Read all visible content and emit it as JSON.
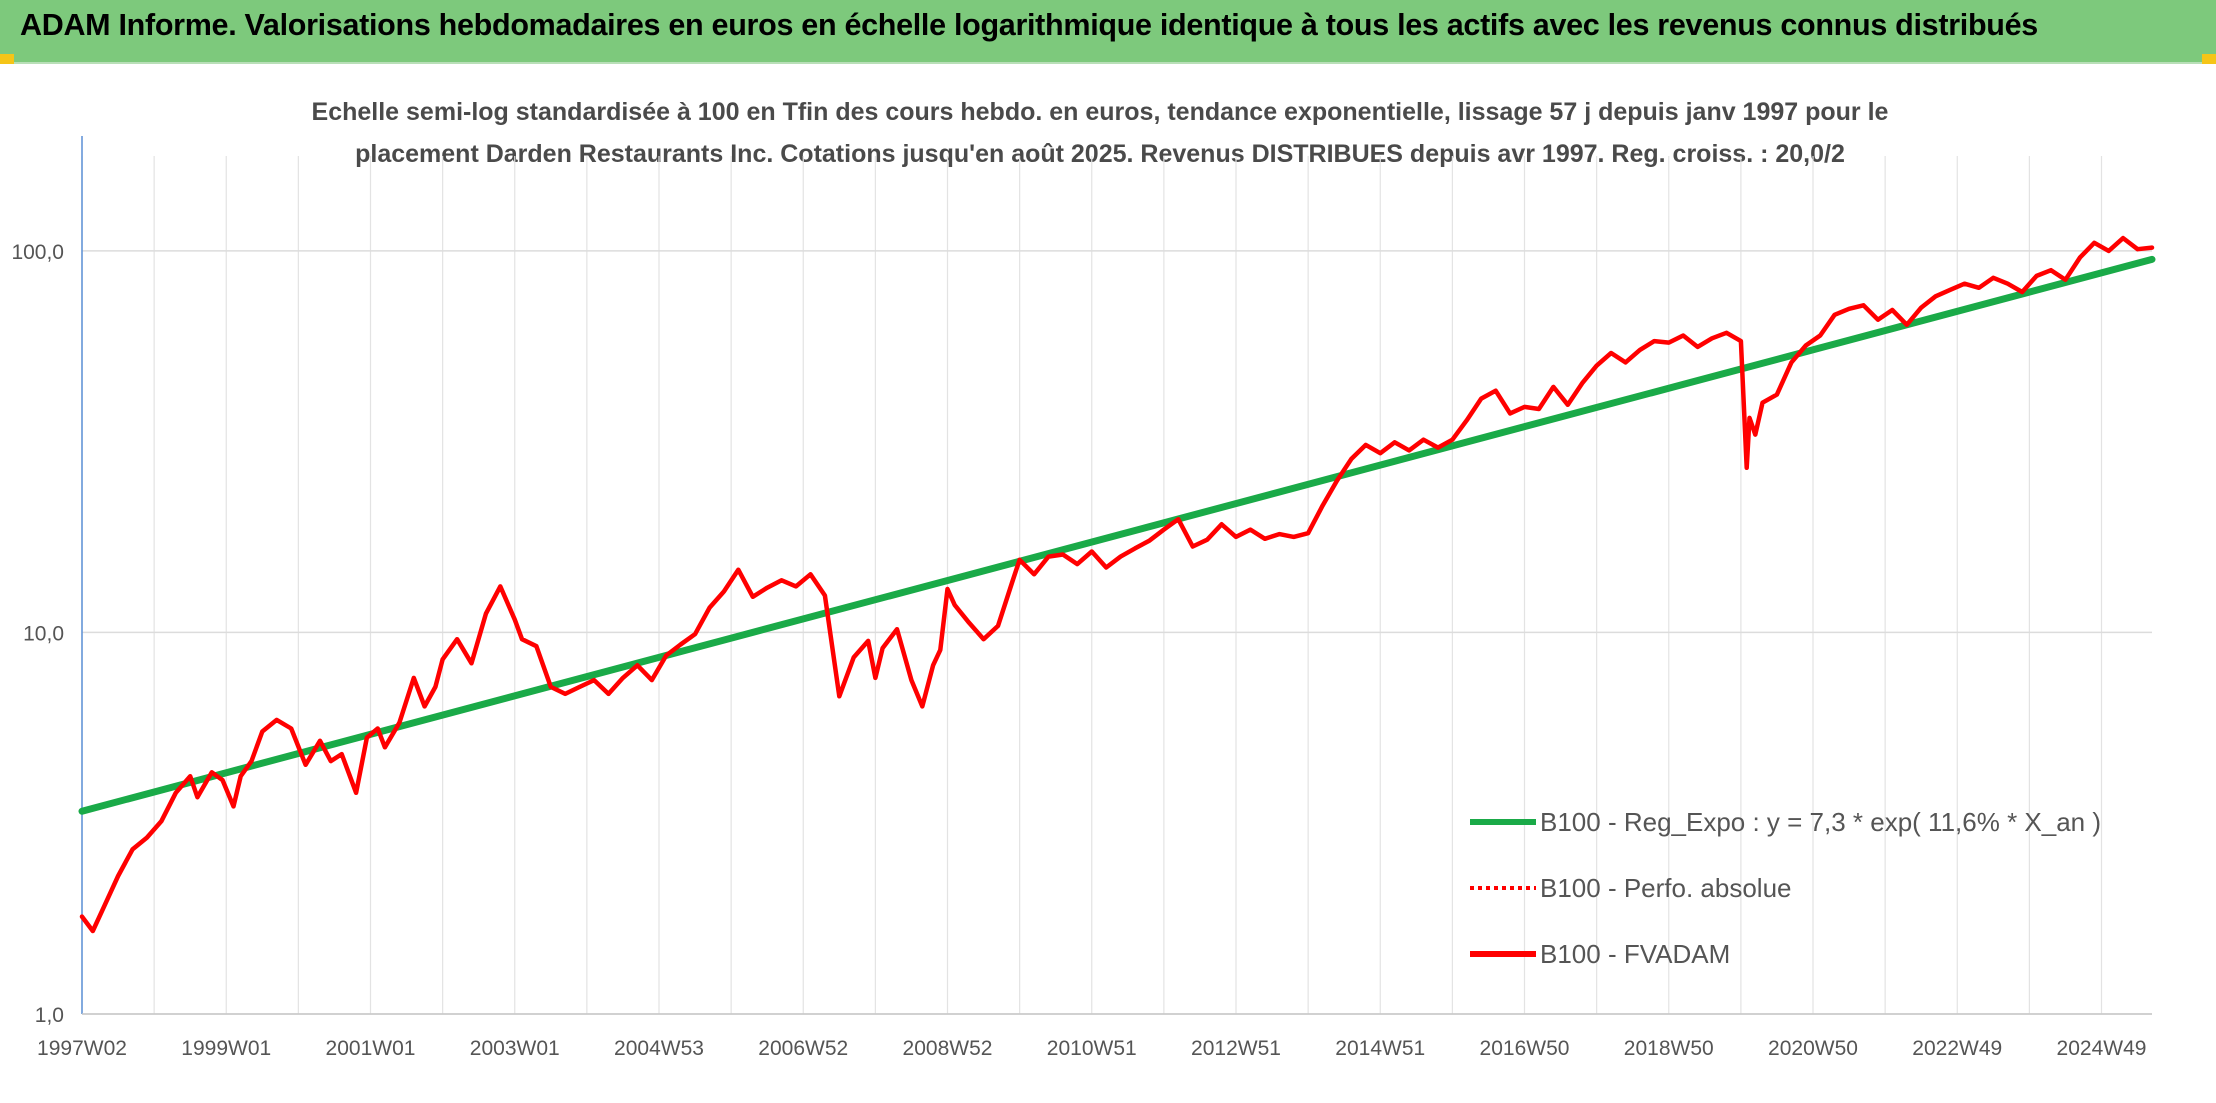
{
  "header": {
    "title": "ADAM Informe. Valorisations hebdomadaires en euros en échelle logarithmique identique à tous les actifs avec les revenus connus distribués"
  },
  "colors": {
    "header_bg": "#7dc97c",
    "accent_corner": "#f5c518",
    "regression": "#1aaa48",
    "fvadam": "#ff0000",
    "grid": "#d9d9d9"
  },
  "chart_data": {
    "type": "line",
    "title_lines": [
      "Echelle semi-log standardisée à 100 en Tfin des cours hebdo. en euros, tendance exponentielle, lissage 57 j depuis janv 1997 pour le",
      "placement Darden Restaurants Inc. Cotations jusqu'en août 2025. Revenus DISTRIBUES depuis avr 1997. Reg. croiss. : 20,0/2"
    ],
    "y_scale": "log",
    "ylim": [
      1,
      200
    ],
    "y_ticks": [
      1,
      10,
      100
    ],
    "y_tick_labels": [
      "1,0",
      "10,0",
      "100,0"
    ],
    "x_range": [
      1997.0,
      2025.7
    ],
    "x_ticks": [
      1997.0,
      1999.0,
      2001.0,
      2003.0,
      2005.0,
      2007.0,
      2009.0,
      2011.0,
      2013.0,
      2015.0,
      2017.0,
      2019.0,
      2021.0,
      2023.0,
      2025.0
    ],
    "x_tick_labels": [
      "1997W02",
      "1999W01",
      "2001W01",
      "2003W01",
      "2004W53",
      "2006W52",
      "2008W52",
      "2010W51",
      "2012W51",
      "2014W51",
      "2016W50",
      "2018W50",
      "2020W50",
      "2022W49",
      "2024W49"
    ],
    "grid": true,
    "legend_position": "lower-right",
    "legend": [
      {
        "label": "B100 - Reg_Expo : y = 7,3 * exp( 11,6% *  X_an )",
        "color": "#1aaa48",
        "style": "solid"
      },
      {
        "label": "B100 - Perfo. absolue",
        "color": "#ff0000",
        "style": "dotted"
      },
      {
        "label": "B100 - FVADAM",
        "color": "#ff0000",
        "style": "solid"
      }
    ],
    "series": [
      {
        "name": "B100 - Reg_Expo : y = 7,3 * exp( 11,6% *  X_an )",
        "x": [
          1997.0,
          2025.7
        ],
        "y": [
          3.4,
          95
        ]
      },
      {
        "name": "B100 - FVADAM",
        "x": [
          1997.0,
          1997.15,
          1997.3,
          1997.5,
          1997.7,
          1997.9,
          1998.1,
          1998.3,
          1998.5,
          1998.6,
          1998.8,
          1998.95,
          1999.1,
          1999.2,
          1999.35,
          1999.5,
          1999.7,
          1999.9,
          2000.1,
          2000.3,
          2000.45,
          2000.6,
          2000.8,
          2000.95,
          2001.1,
          2001.2,
          2001.4,
          2001.6,
          2001.75,
          2001.9,
          2002.0,
          2002.2,
          2002.4,
          2002.6,
          2002.8,
          2003.0,
          2003.1,
          2003.3,
          2003.5,
          2003.7,
          2003.9,
          2004.1,
          2004.3,
          2004.5,
          2004.7,
          2004.9,
          2005.1,
          2005.3,
          2005.5,
          2005.7,
          2005.9,
          2006.1,
          2006.3,
          2006.5,
          2006.7,
          2006.9,
          2007.1,
          2007.3,
          2007.5,
          2007.7,
          2007.9,
          2008.0,
          2008.1,
          2008.3,
          2008.5,
          2008.65,
          2008.8,
          2008.9,
          2009.0,
          2009.1,
          2009.3,
          2009.5,
          2009.7,
          2009.9,
          2010.0,
          2010.2,
          2010.4,
          2010.6,
          2010.8,
          2011.0,
          2011.2,
          2011.4,
          2011.6,
          2011.8,
          2012.0,
          2012.2,
          2012.4,
          2012.6,
          2012.8,
          2013.0,
          2013.2,
          2013.4,
          2013.6,
          2013.8,
          2014.0,
          2014.2,
          2014.4,
          2014.6,
          2014.8,
          2015.0,
          2015.2,
          2015.4,
          2015.6,
          2015.8,
          2016.0,
          2016.2,
          2016.4,
          2016.6,
          2016.8,
          2017.0,
          2017.2,
          2017.4,
          2017.6,
          2017.8,
          2018.0,
          2018.2,
          2018.4,
          2018.6,
          2018.8,
          2019.0,
          2019.2,
          2019.4,
          2019.6,
          2019.8,
          2020.0,
          2020.08,
          2020.12,
          2020.2,
          2020.3,
          2020.5,
          2020.7,
          2020.9,
          2021.1,
          2021.3,
          2021.5,
          2021.7,
          2021.9,
          2022.1,
          2022.3,
          2022.5,
          2022.7,
          2022.9,
          2023.1,
          2023.3,
          2023.5,
          2023.7,
          2023.9,
          2024.1,
          2024.3,
          2024.5,
          2024.7,
          2024.9,
          2025.1,
          2025.3,
          2025.5,
          2025.7
        ],
        "y": [
          1.8,
          1.65,
          1.9,
          2.3,
          2.7,
          2.9,
          3.2,
          3.8,
          4.2,
          3.7,
          4.3,
          4.1,
          3.5,
          4.2,
          4.6,
          5.5,
          5.9,
          5.6,
          4.5,
          5.2,
          4.6,
          4.8,
          3.8,
          5.3,
          5.6,
          5.0,
          5.8,
          7.6,
          6.4,
          7.2,
          8.5,
          9.6,
          8.3,
          11.2,
          13.2,
          10.8,
          9.6,
          9.2,
          7.2,
          6.9,
          7.2,
          7.5,
          6.9,
          7.6,
          8.2,
          7.5,
          8.7,
          9.3,
          9.9,
          11.6,
          12.8,
          14.6,
          12.4,
          13.1,
          13.7,
          13.2,
          14.2,
          12.5,
          6.8,
          8.6,
          9.5,
          7.6,
          9.1,
          10.2,
          7.5,
          6.4,
          8.2,
          9.0,
          13.0,
          11.8,
          10.6,
          9.6,
          10.4,
          13.6,
          15.5,
          14.2,
          15.8,
          16.0,
          15.1,
          16.3,
          14.8,
          15.8,
          16.6,
          17.4,
          18.6,
          19.8,
          16.8,
          17.5,
          19.2,
          17.8,
          18.6,
          17.6,
          18.1,
          17.8,
          18.2,
          21.5,
          25.0,
          28.5,
          31.0,
          29.5,
          31.5,
          30.0,
          32.0,
          30.5,
          32.0,
          36.0,
          41.0,
          43.0,
          37.5,
          39.0,
          38.5,
          44.0,
          39.5,
          45.0,
          50.0,
          54.0,
          51.0,
          55.0,
          58.0,
          57.5,
          60.0,
          56.0,
          59.0,
          61.0,
          58.0,
          27.0,
          36.5,
          33.0,
          40.0,
          42.0,
          51.0,
          56.5,
          60.0,
          68.0,
          70.5,
          72.0,
          66.0,
          70.0,
          64.0,
          71.0,
          76.0,
          79.0,
          82.0,
          80.0,
          85.0,
          82.0,
          78.0,
          86.0,
          89.0,
          84.0,
          96.0,
          105.0,
          100.0,
          108.0,
          101.0,
          102.0
        ]
      }
    ]
  }
}
